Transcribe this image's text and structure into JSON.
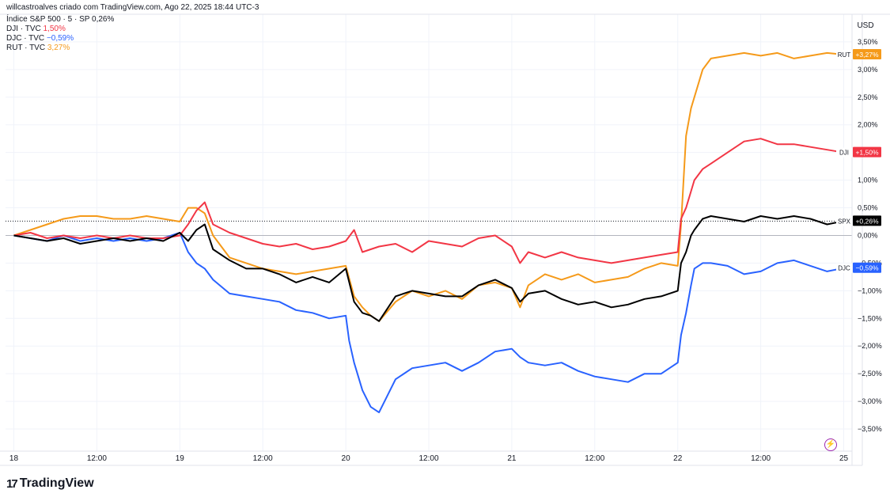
{
  "credit": "willcastroalves criado com TradingView.com, Ago 22, 2025 18:44 UTC-3",
  "legend": [
    {
      "label": "Índice S&P 500 · 5 · SP",
      "value": "0,26%",
      "color": "#131722"
    },
    {
      "label": "DJI · TVC",
      "value": "1,50%",
      "color": "#f23645"
    },
    {
      "label": "DJC · TVC",
      "value": "−0,59%",
      "color": "#2962ff"
    },
    {
      "label": "RUT · TVC",
      "value": "3,27%",
      "color": "#f59a1a"
    }
  ],
  "brand": "TradingView",
  "axis_unit": "USD",
  "chart_data": {
    "type": "line",
    "y_unit": "%",
    "ylim": [
      -3.9,
      4.0
    ],
    "y_ticks": [
      3.5,
      3.0,
      2.5,
      2.0,
      1.5,
      1.0,
      0.5,
      0.0,
      -0.5,
      -1.0,
      -1.5,
      -2.0,
      -2.5,
      -3.0,
      -3.5
    ],
    "y_tick_labels": [
      "3,50%",
      "3,00%",
      "2,50%",
      "2,00%",
      "1,50%",
      "1,00%",
      "0,50%",
      "0,00%",
      "−0,50%",
      "−1,00%",
      "−1,50%",
      "−2,00%",
      "−2,50%",
      "−3,00%",
      "−3,50%"
    ],
    "x_ticks": [
      {
        "t": 0.0,
        "label": "18"
      },
      {
        "t": 0.5,
        "label": "12:00"
      },
      {
        "t": 1.0,
        "label": "19"
      },
      {
        "t": 1.5,
        "label": "12:00"
      },
      {
        "t": 2.0,
        "label": "20"
      },
      {
        "t": 2.5,
        "label": "12:00"
      },
      {
        "t": 3.0,
        "label": "21"
      },
      {
        "t": 3.5,
        "label": "12:00"
      },
      {
        "t": 4.0,
        "label": "22"
      },
      {
        "t": 4.5,
        "label": "12:00"
      },
      {
        "t": 5.0,
        "label": "25"
      }
    ],
    "xlim": [
      -0.05,
      5.05
    ],
    "grid": true,
    "series": [
      {
        "name": "SPX",
        "tag": "+0,26%",
        "color": "#000000",
        "last": 0.26,
        "t": [
          0,
          0.1,
          0.2,
          0.3,
          0.4,
          0.5,
          0.6,
          0.7,
          0.8,
          0.9,
          1.0,
          1.05,
          1.1,
          1.15,
          1.2,
          1.3,
          1.4,
          1.5,
          1.6,
          1.7,
          1.8,
          1.9,
          2.0,
          2.05,
          2.1,
          2.15,
          2.2,
          2.3,
          2.4,
          2.5,
          2.6,
          2.7,
          2.8,
          2.9,
          3.0,
          3.05,
          3.1,
          3.2,
          3.3,
          3.4,
          3.5,
          3.6,
          3.7,
          3.8,
          3.9,
          4.0,
          4.02,
          4.05,
          4.08,
          4.1,
          4.15,
          4.2,
          4.3,
          4.4,
          4.5,
          4.6,
          4.7,
          4.8,
          4.9,
          5.0
        ],
        "v": [
          0.0,
          -0.05,
          -0.1,
          -0.05,
          -0.15,
          -0.1,
          -0.05,
          -0.1,
          -0.05,
          -0.1,
          0.05,
          -0.1,
          0.1,
          0.2,
          -0.25,
          -0.45,
          -0.6,
          -0.6,
          -0.7,
          -0.85,
          -0.75,
          -0.85,
          -0.6,
          -1.2,
          -1.4,
          -1.45,
          -1.55,
          -1.1,
          -1.0,
          -1.05,
          -1.1,
          -1.1,
          -0.9,
          -0.8,
          -0.95,
          -1.2,
          -1.05,
          -1.0,
          -1.15,
          -1.25,
          -1.2,
          -1.3,
          -1.25,
          -1.15,
          -1.1,
          -1.0,
          -0.5,
          -0.3,
          0.0,
          0.1,
          0.3,
          0.35,
          0.3,
          0.25,
          0.35,
          0.3,
          0.35,
          0.3,
          0.2,
          0.26
        ]
      },
      {
        "name": "DJI",
        "tag": "+1,50%",
        "color": "#f23645",
        "last": 1.5,
        "t": [
          0,
          0.1,
          0.2,
          0.3,
          0.4,
          0.5,
          0.6,
          0.7,
          0.8,
          0.9,
          1.0,
          1.05,
          1.1,
          1.15,
          1.2,
          1.3,
          1.4,
          1.5,
          1.6,
          1.7,
          1.8,
          1.9,
          2.0,
          2.05,
          2.1,
          2.2,
          2.3,
          2.4,
          2.5,
          2.6,
          2.7,
          2.8,
          2.9,
          3.0,
          3.05,
          3.1,
          3.2,
          3.3,
          3.4,
          3.5,
          3.6,
          3.7,
          3.8,
          3.9,
          4.0,
          4.02,
          4.05,
          4.08,
          4.1,
          4.15,
          4.2,
          4.3,
          4.4,
          4.5,
          4.6,
          4.7,
          4.8,
          4.9,
          5.0
        ],
        "v": [
          0.0,
          0.05,
          -0.05,
          0.0,
          -0.05,
          0.0,
          -0.05,
          0.0,
          -0.05,
          -0.05,
          0.0,
          0.2,
          0.45,
          0.6,
          0.2,
          0.05,
          -0.05,
          -0.15,
          -0.2,
          -0.15,
          -0.25,
          -0.2,
          -0.1,
          0.1,
          -0.3,
          -0.2,
          -0.15,
          -0.3,
          -0.1,
          -0.15,
          -0.2,
          -0.05,
          0.0,
          -0.2,
          -0.5,
          -0.3,
          -0.4,
          -0.3,
          -0.4,
          -0.45,
          -0.5,
          -0.45,
          -0.4,
          -0.35,
          -0.3,
          0.3,
          0.5,
          0.8,
          1.0,
          1.2,
          1.3,
          1.5,
          1.7,
          1.75,
          1.65,
          1.65,
          1.6,
          1.55,
          1.5
        ]
      },
      {
        "name": "DJC",
        "tag": "−0,59%",
        "color": "#2962ff",
        "last": -0.59,
        "t": [
          0,
          0.1,
          0.2,
          0.3,
          0.4,
          0.5,
          0.6,
          0.7,
          0.8,
          0.9,
          1.0,
          1.05,
          1.1,
          1.15,
          1.2,
          1.3,
          1.4,
          1.5,
          1.6,
          1.7,
          1.8,
          1.9,
          2.0,
          2.02,
          2.05,
          2.1,
          2.15,
          2.2,
          2.3,
          2.4,
          2.5,
          2.6,
          2.7,
          2.8,
          2.9,
          3.0,
          3.05,
          3.1,
          3.2,
          3.3,
          3.4,
          3.5,
          3.6,
          3.7,
          3.8,
          3.9,
          4.0,
          4.02,
          4.05,
          4.08,
          4.1,
          4.15,
          4.2,
          4.3,
          4.4,
          4.5,
          4.6,
          4.7,
          4.8,
          4.9,
          5.0
        ],
        "v": [
          0.0,
          -0.05,
          -0.1,
          0.0,
          -0.1,
          -0.05,
          -0.1,
          -0.05,
          -0.1,
          -0.05,
          0.05,
          -0.3,
          -0.5,
          -0.6,
          -0.8,
          -1.05,
          -1.1,
          -1.15,
          -1.2,
          -1.35,
          -1.4,
          -1.5,
          -1.45,
          -1.9,
          -2.3,
          -2.8,
          -3.1,
          -3.2,
          -2.6,
          -2.4,
          -2.35,
          -2.3,
          -2.45,
          -2.3,
          -2.1,
          -2.05,
          -2.2,
          -2.3,
          -2.35,
          -2.3,
          -2.45,
          -2.55,
          -2.6,
          -2.65,
          -2.5,
          -2.5,
          -2.3,
          -1.8,
          -1.4,
          -0.9,
          -0.6,
          -0.5,
          -0.5,
          -0.55,
          -0.7,
          -0.65,
          -0.5,
          -0.45,
          -0.55,
          -0.65,
          -0.59
        ]
      },
      {
        "name": "RUT",
        "tag": "+3,27%",
        "color": "#f59a1a",
        "last": 3.27,
        "t": [
          0,
          0.1,
          0.2,
          0.3,
          0.4,
          0.5,
          0.6,
          0.7,
          0.8,
          0.9,
          1.0,
          1.05,
          1.1,
          1.15,
          1.2,
          1.3,
          1.4,
          1.5,
          1.6,
          1.7,
          1.8,
          1.9,
          2.0,
          2.05,
          2.1,
          2.15,
          2.2,
          2.3,
          2.4,
          2.5,
          2.6,
          2.7,
          2.8,
          2.9,
          3.0,
          3.05,
          3.1,
          3.2,
          3.3,
          3.4,
          3.5,
          3.6,
          3.7,
          3.8,
          3.9,
          4.0,
          4.02,
          4.05,
          4.08,
          4.1,
          4.15,
          4.2,
          4.3,
          4.4,
          4.5,
          4.6,
          4.7,
          4.8,
          4.9,
          5.0
        ],
        "v": [
          0.0,
          0.1,
          0.2,
          0.3,
          0.35,
          0.35,
          0.3,
          0.3,
          0.35,
          0.3,
          0.25,
          0.5,
          0.5,
          0.4,
          0.0,
          -0.4,
          -0.5,
          -0.6,
          -0.65,
          -0.7,
          -0.65,
          -0.6,
          -0.55,
          -1.1,
          -1.3,
          -1.45,
          -1.55,
          -1.2,
          -1.0,
          -1.1,
          -1.0,
          -1.15,
          -0.9,
          -0.85,
          -0.95,
          -1.3,
          -0.9,
          -0.7,
          -0.8,
          -0.7,
          -0.85,
          -0.8,
          -0.75,
          -0.6,
          -0.5,
          -0.55,
          0.2,
          1.8,
          2.3,
          2.5,
          3.0,
          3.2,
          3.25,
          3.3,
          3.25,
          3.3,
          3.2,
          3.25,
          3.3,
          3.27
        ]
      }
    ]
  }
}
